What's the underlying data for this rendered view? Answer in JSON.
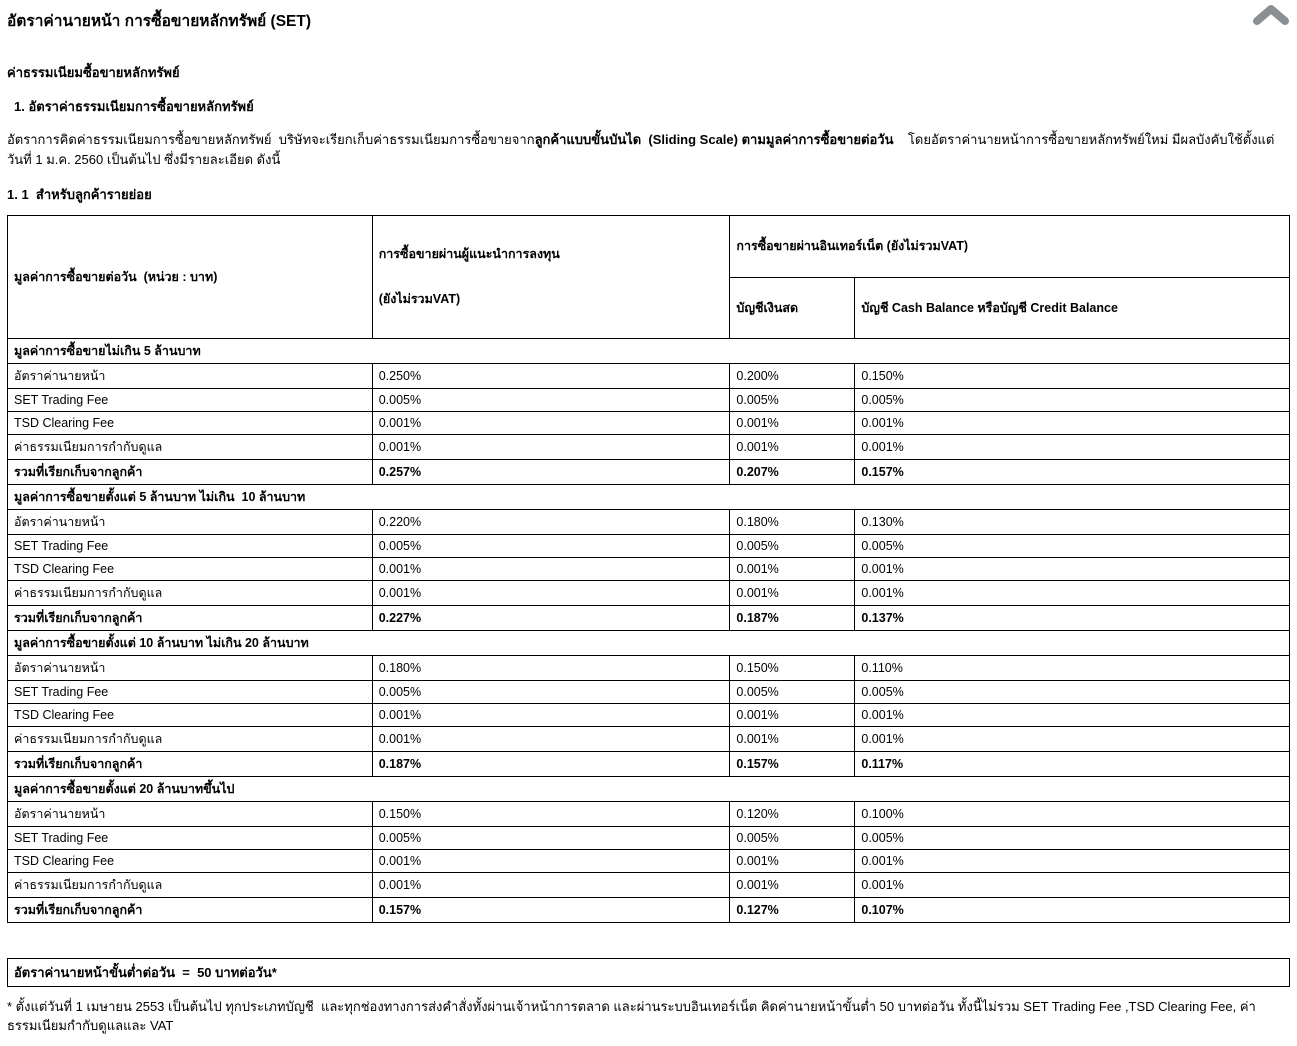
{
  "header": {
    "title": "อัตราค่านายหน้า การซื้อขายหลักทรัพย์ (SET)",
    "collapse_icon": "chevron-up",
    "collapse_icon_color": "#8a8f94"
  },
  "intro": {
    "subtitle": "ค่าธรรมเนียมซื้อขายหลักทรัพย์",
    "item1": "1. อัตราค่าธรรมเนียมการซื้อขายหลักทรัพย์",
    "p_regular1": "อัตราการคิดค่าธรรมเนียมการซื้อขายหลักทรัพย์  บริษัทจะเรียกเก็บค่าธรรมเนียมการซื้อขายจาก",
    "p_bold1": "ลูกค้าแบบขั้นบันได  (Sliding Scale) ตามมูลค่าการซื้อขายต่อวัน",
    "p_regular2": "    โดยอัตราค่านายหน้าการซื้อขายหลักทรัพย์ใหม่ มีผลบังคับใช้ตั้งแต่วันที่ 1 ม.ค. 2560 เป็นต้นไป ซึ่งมีรายละเอียด ดังนี้",
    "subsection_title": "1. 1  สำหรับลูกค้ารายย่อย"
  },
  "table": {
    "header": {
      "col1": "มูลค่าการซื้อขายต่อวัน  (หน่วย : บาท)",
      "col2_line1": "การซื้อขายผ่านผู้แนะนำการลงทุน",
      "col2_line2": "(ยังไม่รวมVAT)",
      "group_internet": "การซื้อขายผ่านอินเทอร์เน็ต (ยังไม่รวมVAT)",
      "col3": "บัญชีเงินสด",
      "col4": "บัญชี Cash Balance หรือบัญชี Credit Balance"
    },
    "sections": [
      {
        "title": "มูลค่าการซื้อขายไม่เกิน 5 ล้านบาท",
        "rows": [
          {
            "label": "อัตราค่านายหน้า",
            "values": [
              "0.250%",
              "0.200%",
              "0.150%"
            ],
            "bold": false
          },
          {
            "label": "SET Trading Fee",
            "values": [
              "0.005%",
              "0.005%",
              "0.005%"
            ],
            "bold": false
          },
          {
            "label": "TSD Clearing Fee",
            "values": [
              "0.001%",
              "0.001%",
              "0.001%"
            ],
            "bold": false
          },
          {
            "label": "ค่าธรรมเนียมการกำกับดูแล",
            "values": [
              "0.001%",
              "0.001%",
              "0.001%"
            ],
            "bold": false
          },
          {
            "label": "รวมที่เรียกเก็บจากลูกค้า",
            "values": [
              "0.257%",
              "0.207%",
              "0.157%"
            ],
            "bold": true
          }
        ]
      },
      {
        "title": "มูลค่าการซื้อขายตั้งแต่ 5 ล้านบาท ไม่เกิน  10 ล้านบาท",
        "rows": [
          {
            "label": "อัตราค่านายหน้า",
            "values": [
              "0.220%",
              "0.180%",
              "0.130%"
            ],
            "bold": false
          },
          {
            "label": "SET Trading Fee",
            "values": [
              "0.005%",
              "0.005%",
              "0.005%"
            ],
            "bold": false
          },
          {
            "label": "TSD Clearing Fee",
            "values": [
              "0.001%",
              "0.001%",
              "0.001%"
            ],
            "bold": false
          },
          {
            "label": "ค่าธรรมเนียมการกำกับดูแล",
            "values": [
              "0.001%",
              "0.001%",
              "0.001%"
            ],
            "bold": false
          },
          {
            "label": "รวมที่เรียกเก็บจากลูกค้า",
            "values": [
              "0.227%",
              "0.187%",
              "0.137%"
            ],
            "bold": true
          }
        ]
      },
      {
        "title": "มูลค่าการซื้อขายตั้งแต่ 10 ล้านบาท ไม่เกิน 20 ล้านบาท",
        "rows": [
          {
            "label": "อัตราค่านายหน้า",
            "values": [
              "0.180%",
              "0.150%",
              "0.110%"
            ],
            "bold": false
          },
          {
            "label": "SET Trading Fee",
            "values": [
              "0.005%",
              "0.005%",
              "0.005%"
            ],
            "bold": false
          },
          {
            "label": "TSD Clearing Fee",
            "values": [
              "0.001%",
              "0.001%",
              "0.001%"
            ],
            "bold": false
          },
          {
            "label": "ค่าธรรมเนียมการกำกับดูแล",
            "values": [
              "0.001%",
              "0.001%",
              "0.001%"
            ],
            "bold": false
          },
          {
            "label": "รวมที่เรียกเก็บจากลูกค้า",
            "values": [
              "0.187%",
              "0.157%",
              "0.117%"
            ],
            "bold": true
          }
        ]
      },
      {
        "title": "มูลค่าการซื้อขายตั้งแต่ 20 ล้านบาทขึ้นไป",
        "rows": [
          {
            "label": "อัตราค่านายหน้า",
            "values": [
              "0.150%",
              "0.120%",
              "0.100%"
            ],
            "bold": false
          },
          {
            "label": "SET Trading Fee",
            "values": [
              "0.005%",
              "0.005%",
              "0.005%"
            ],
            "bold": false
          },
          {
            "label": "TSD Clearing Fee",
            "values": [
              "0.001%",
              "0.001%",
              "0.001%"
            ],
            "bold": false
          },
          {
            "label": "ค่าธรรมเนียมการกำกับดูแล",
            "values": [
              "0.001%",
              "0.001%",
              "0.001%"
            ],
            "bold": false
          },
          {
            "label": "รวมที่เรียกเก็บจากลูกค้า",
            "values": [
              "0.157%",
              "0.127%",
              "0.107%"
            ],
            "bold": true
          }
        ]
      }
    ]
  },
  "minimum": {
    "text": "อัตราค่านายหน้าขั้นต่ำต่อวัน  =  50 บาทต่อวัน*"
  },
  "footnote": "* ตั้งแต่วันที่ 1 เมษายน 2553 เป็นต้นไป ทุกประเภทบัญชี  และทุกช่องทางการส่งคำสั่งทั้งผ่านเจ้าหน้าการตลาด และผ่านระบบอินเทอร์เน็ต คิดค่านายหน้าขั้นต่ำ 50 บาทต่อวัน ทั้งนี้ไม่รวม SET Trading Fee ,TSD Clearing Fee, ค่าธรรมเนียมกำกับดูแลและ VAT"
}
